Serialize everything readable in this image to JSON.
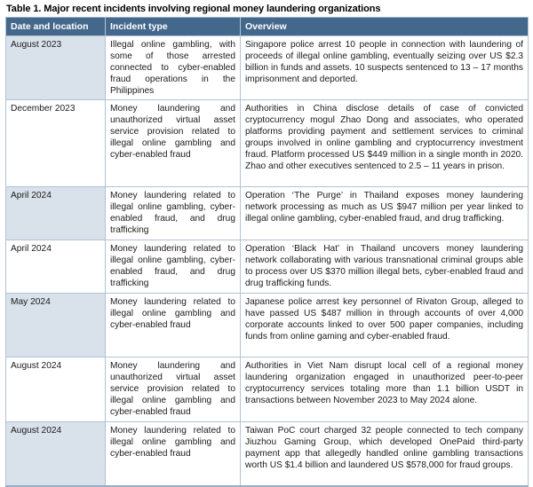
{
  "title": "Table 1. Major recent incidents involving regional money laundering organizations",
  "colors": {
    "header_bg": "#44688c",
    "header_text": "#ffffff",
    "band_bg": "#d9e1ea",
    "cell_border": "#b0c3d6",
    "outer_border": "#98b0c6"
  },
  "table": {
    "columns": {
      "date": "Date and location",
      "incident_type": "Incident type",
      "overview": "Overview"
    },
    "rows": [
      {
        "date": "August 2023",
        "incident_type": "Illegal online gambling, with some of those arrested connected to cyber-enabled fraud operations in the Philippines",
        "overview": "Singapore police arrest 10 people in connection with laundering of proceeds of illegal online gambling, eventually seizing over US $2.3 billion in funds and assets. 10 suspects sentenced to 13 – 17 months imprisonment and deported."
      },
      {
        "date": "December 2023",
        "incident_type": "Money laundering and unauthorized virtual asset service provision related to illegal online gambling and cyber-enabled fraud",
        "overview": "Authorities in China disclose details of case of convicted cryptocurrency mogul Zhao Dong and associates, who operated platforms providing payment and settlement services to criminal groups involved in online gambling and cryptocurrency investment fraud. Platform processed US $449 million in a single month in 2020. Zhao and other executives sentenced to 2.5 – 11 years in prison."
      },
      {
        "date": "April 2024",
        "incident_type": "Money laundering related to illegal online gambling, cyber-enabled fraud, and drug trafficking",
        "overview": "Operation ‘The Purge’ in Thailand exposes money laundering network processing as much as US $947 million per year linked to illegal online gambling, cyber-enabled fraud, and drug trafficking."
      },
      {
        "date": "April 2024",
        "incident_type": "Money laundering related to illegal online gambling, cyber-enabled fraud, and drug trafficking",
        "overview": "Operation ‘Black Hat’ in Thailand uncovers money laundering network collaborating with various transnational criminal groups able to process over US $370 million illegal bets, cyber-enabled fraud and drug trafficking funds."
      },
      {
        "date": "May 2024",
        "incident_type": "Money laundering related to illegal online gambling and cyber-enabled fraud",
        "overview": "Japanese police arrest key personnel of Rivaton Group, alleged to have passed US $487 million in through accounts of over 4,000 corporate accounts linked to over 500 paper companies, including funds from online gaming and cyber-enabled fraud."
      },
      {
        "date": "August 2024",
        "incident_type": "Money laundering and unauthorized virtual asset service provision related to illegal online gambling and cyber-enabled fraud",
        "overview": "Authorities in Viet Nam disrupt local cell of a regional money laundering organization engaged in unauthorized peer-to-peer cryptocurrency services totaling more than 1.1 billion USDT in transactions between November 2023 to May 2024 alone."
      },
      {
        "date": "August 2024",
        "incident_type": "Money laundering related to illegal online gambling and cyber-enabled fraud",
        "overview": "Taiwan PoC court charged 32 people connected to tech company Jiuzhou Gaming Group, which developed OnePaid third-party payment app that allegedly handled online gambling transactions worth US $1.4 billion and laundered US $578,000 for fraud groups."
      }
    ]
  }
}
